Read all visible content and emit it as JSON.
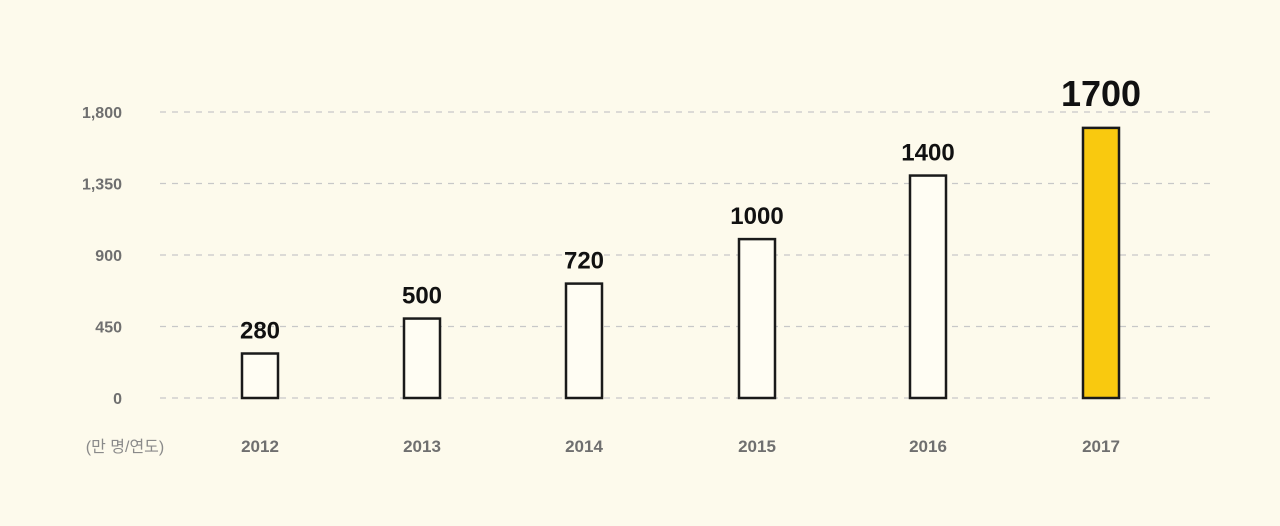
{
  "chart_data": {
    "type": "bar",
    "categories": [
      "2012",
      "2013",
      "2014",
      "2015",
      "2016",
      "2017"
    ],
    "values": [
      280,
      500,
      720,
      1000,
      1400,
      1700
    ],
    "data_labels": [
      "280",
      "500",
      "720",
      "1000",
      "1400",
      "1700"
    ],
    "highlight_index": 5,
    "ylim": [
      0,
      1800
    ],
    "yticks": [
      0,
      450,
      900,
      1350,
      1800
    ],
    "ytick_labels": [
      "0",
      "450",
      "900",
      "1,350",
      "1,800"
    ],
    "unit_label": "(만 명/연도)",
    "grid": true,
    "colors": {
      "background": "#fdfaec",
      "bar_fill": "#fffdf3",
      "bar_stroke": "#1a1a1a",
      "highlight_fill": "#f9c90f",
      "grid": "#c8c8c8",
      "tick_text": "#6f6f6f",
      "label_text": "#111111"
    }
  }
}
